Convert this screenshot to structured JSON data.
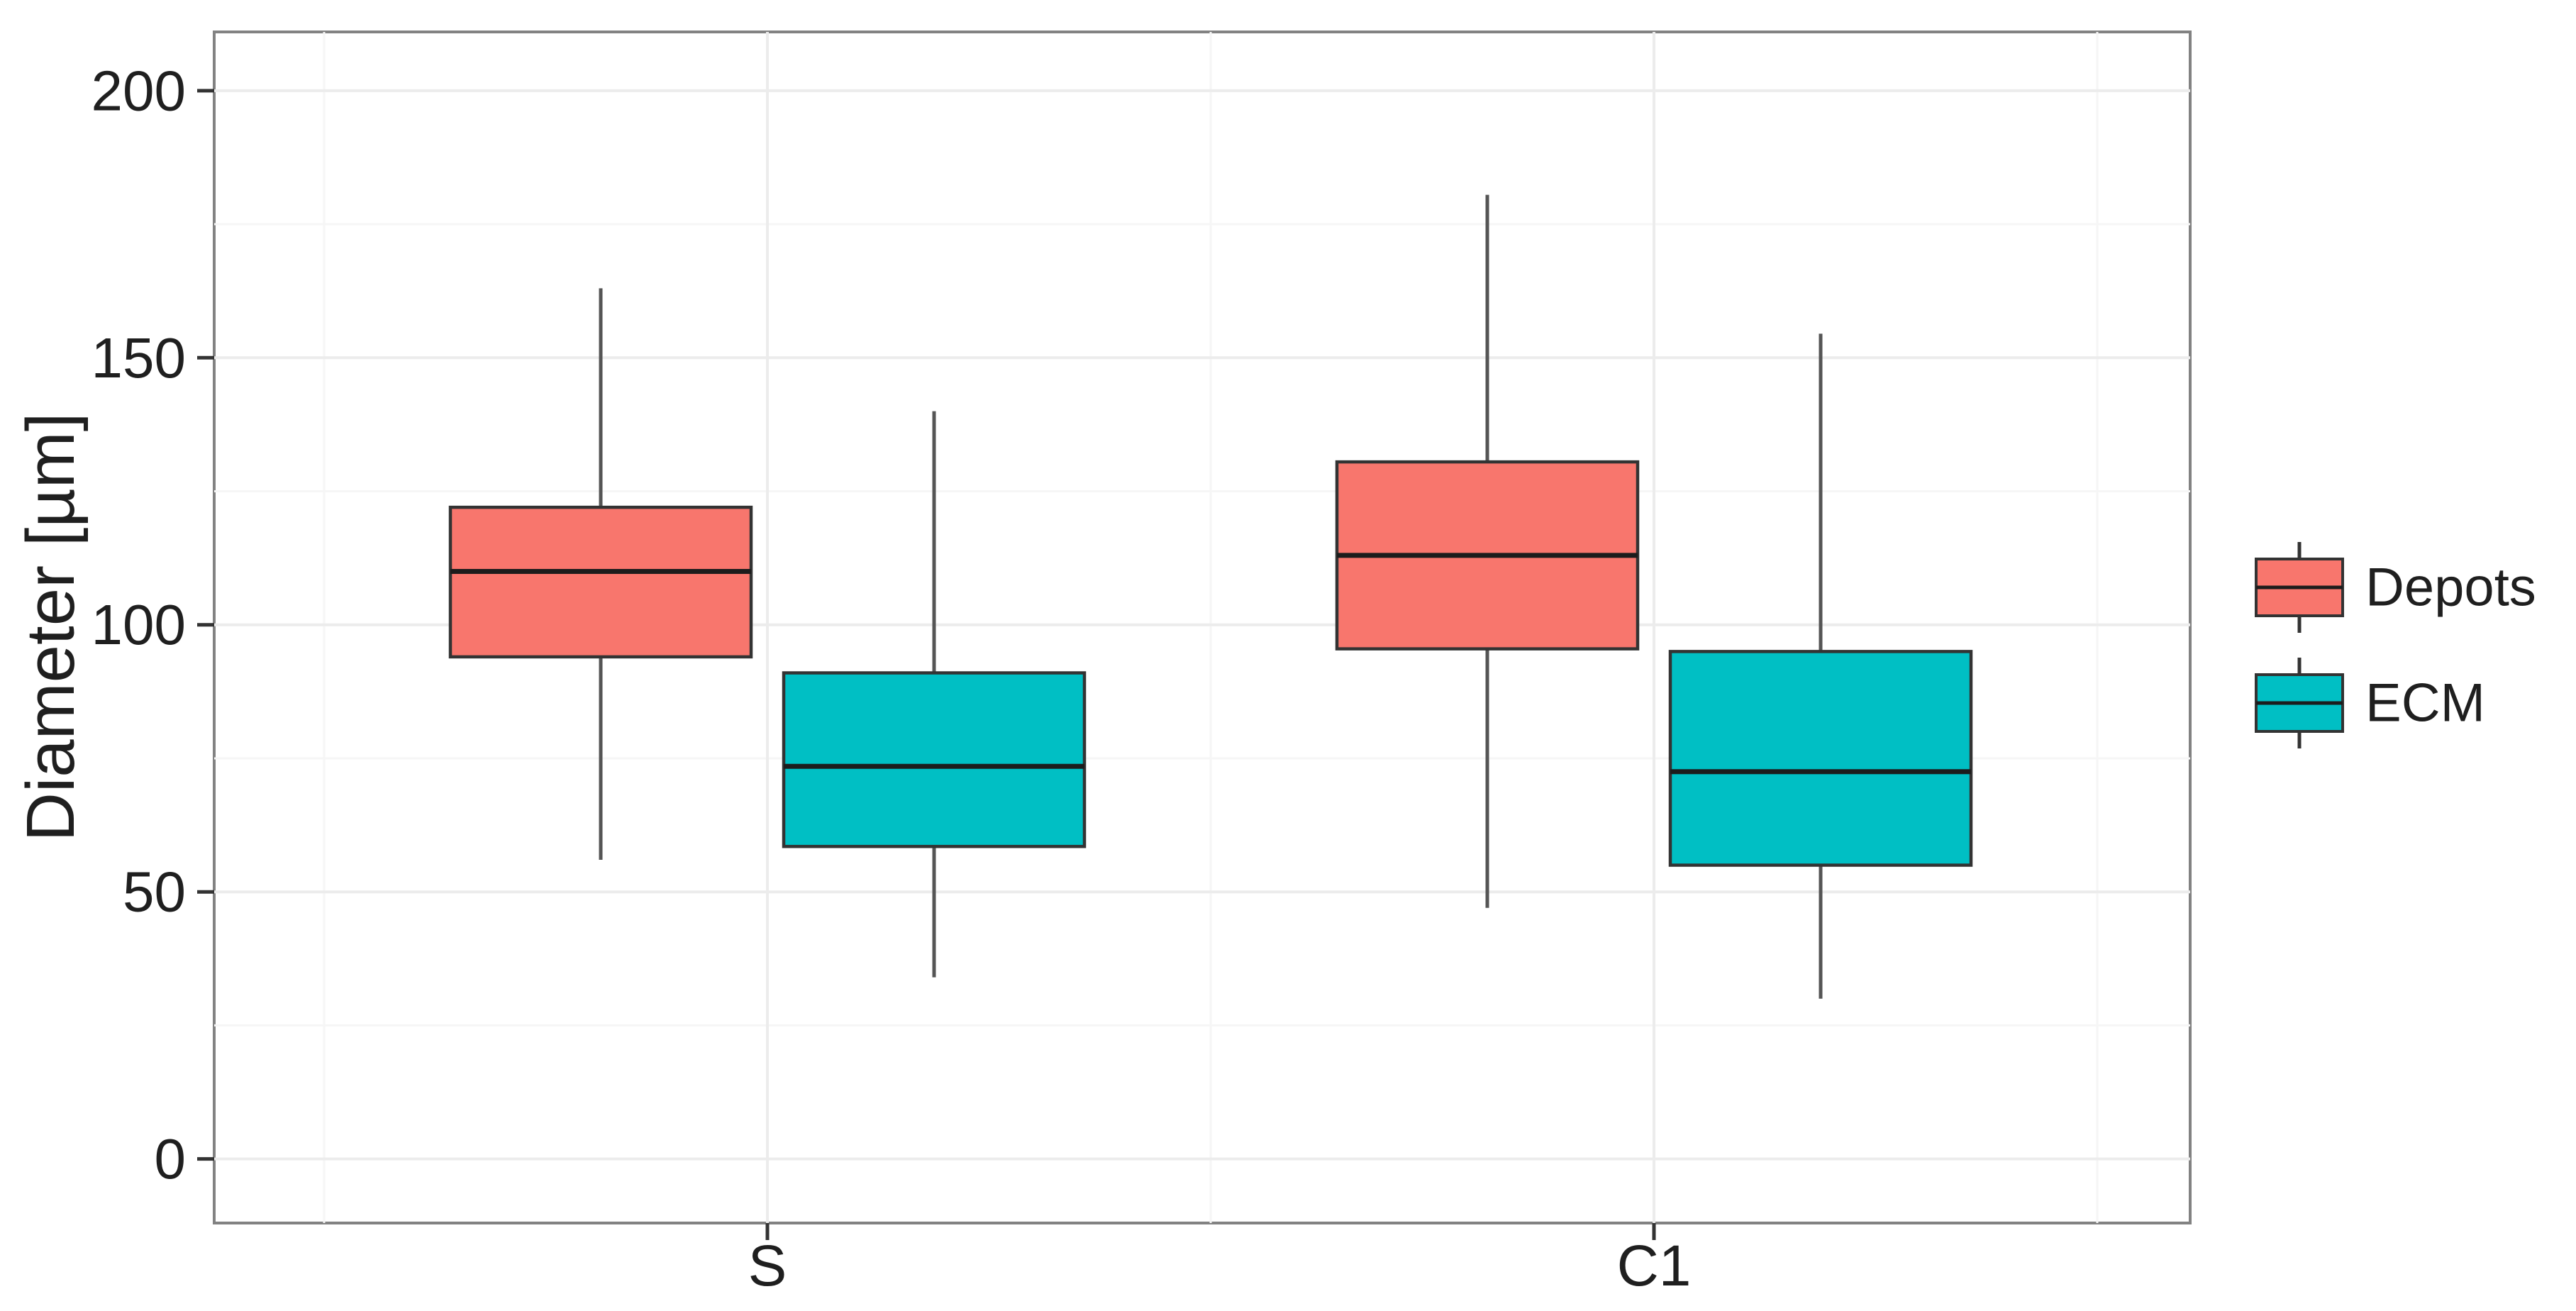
{
  "chart_data": {
    "type": "boxplot",
    "title": "",
    "xlabel": "",
    "ylabel": "Diameter [µm]",
    "categories": [
      "S",
      "C1"
    ],
    "series": [
      {
        "name": "Depots",
        "color": "#F8766D",
        "boxes": [
          {
            "category": "S",
            "whisker_low": 56,
            "q1": 94,
            "median": 110,
            "q3": 122,
            "whisker_high": 163
          },
          {
            "category": "C1",
            "whisker_low": 47,
            "q1": 95.5,
            "median": 113,
            "q3": 130.5,
            "whisker_high": 180.5
          }
        ]
      },
      {
        "name": "ECM",
        "color": "#00BFC4",
        "boxes": [
          {
            "category": "S",
            "whisker_low": 34,
            "q1": 58.5,
            "median": 73.5,
            "q3": 91,
            "whisker_high": 140
          },
          {
            "category": "C1",
            "whisker_low": 30,
            "q1": 55,
            "median": 72.5,
            "q3": 95,
            "whisker_high": 154.5
          }
        ]
      }
    ],
    "y_axis": {
      "ticks": [
        0,
        50,
        100,
        150,
        200
      ],
      "minor_gridlines": [
        25,
        75,
        125,
        175
      ],
      "range": [
        -12,
        211
      ],
      "grid": true
    },
    "legend_position": "right",
    "style": {
      "box_border": "#333333",
      "median_color": "#1c1c1c",
      "whisker_color": "#555555",
      "panel_border": "#828282",
      "grid_major": "#ececec",
      "grid_minor": "#f6f6f6",
      "tick_mark_color": "#333333",
      "text_color": "#1f1f1f",
      "background": "#ffffff"
    }
  }
}
